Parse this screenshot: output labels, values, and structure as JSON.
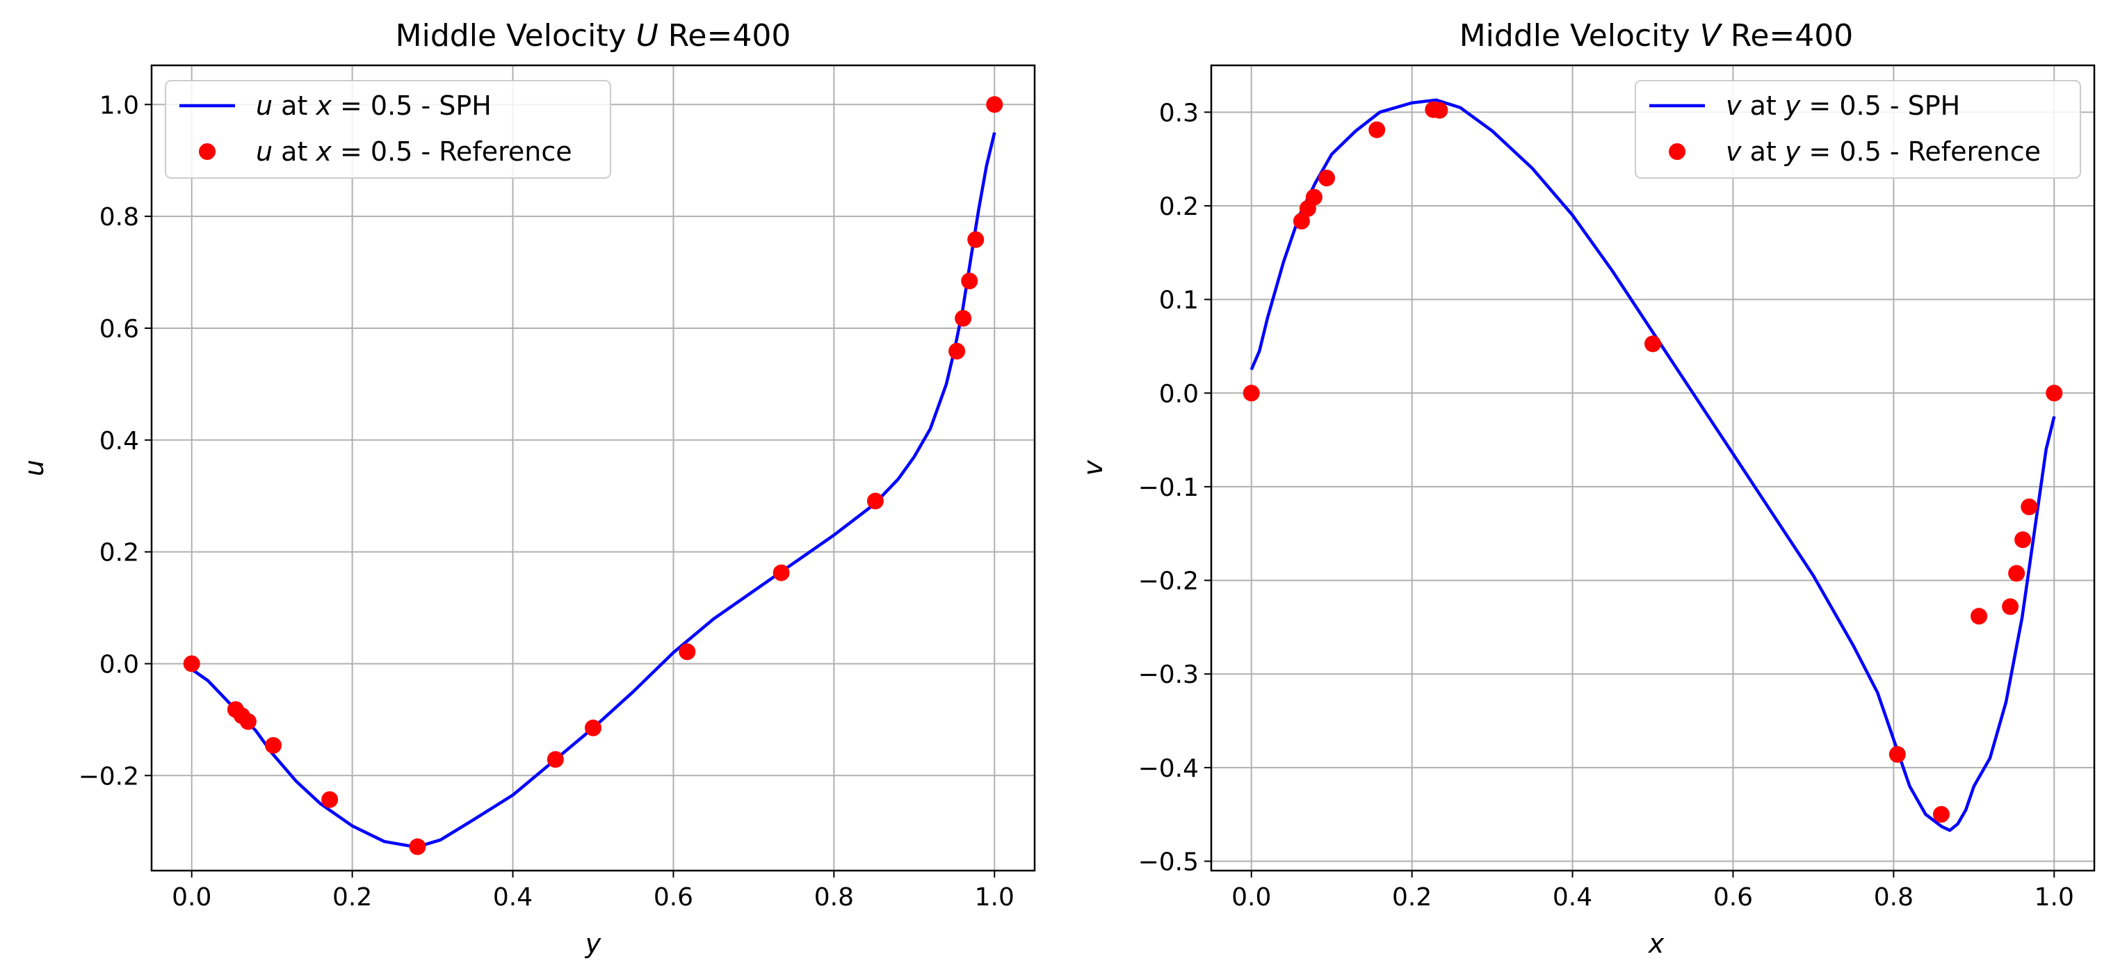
{
  "chart_data": [
    {
      "type": "line",
      "title": "Middle Velocity U Re=400",
      "title_parts": {
        "prefix": "Middle Velocity ",
        "var": "U",
        "suffix": " Re=400"
      },
      "xlabel": "y",
      "ylabel": "u",
      "xlim": [
        -0.05,
        1.05
      ],
      "ylim": [
        -0.37,
        1.07
      ],
      "xticks": [
        0.0,
        0.2,
        0.4,
        0.6,
        0.8,
        1.0
      ],
      "xtick_labels": [
        "0.0",
        "0.2",
        "0.4",
        "0.6",
        "0.8",
        "1.0"
      ],
      "yticks": [
        -0.2,
        0.0,
        0.2,
        0.4,
        0.6,
        0.8,
        1.0
      ],
      "ytick_labels": [
        "−0.2",
        "0.0",
        "0.2",
        "0.4",
        "0.6",
        "0.8",
        "1.0"
      ],
      "grid": true,
      "legend_position": "upper left",
      "series": [
        {
          "name": "u at x = 0.5 - SPH",
          "legend_parts": {
            "var": "u",
            "mid": " at ",
            "var2": "x",
            "rest": " = 0.5 - SPH"
          },
          "kind": "line",
          "color": "#0000ff",
          "x": [
            0.0,
            0.02,
            0.05,
            0.08,
            0.1,
            0.13,
            0.16,
            0.2,
            0.24,
            0.28,
            0.31,
            0.35,
            0.4,
            0.45,
            0.5,
            0.55,
            0.6,
            0.65,
            0.7,
            0.75,
            0.8,
            0.85,
            0.88,
            0.9,
            0.92,
            0.94,
            0.95,
            0.96,
            0.97,
            0.98,
            0.99,
            1.0
          ],
          "y": [
            -0.01,
            -0.03,
            -0.075,
            -0.12,
            -0.16,
            -0.21,
            -0.25,
            -0.29,
            -0.318,
            -0.328,
            -0.315,
            -0.28,
            -0.235,
            -0.175,
            -0.115,
            -0.05,
            0.02,
            0.08,
            0.13,
            0.18,
            0.23,
            0.285,
            0.33,
            0.37,
            0.42,
            0.5,
            0.56,
            0.63,
            0.72,
            0.81,
            0.89,
            0.95
          ]
        },
        {
          "name": "u at x = 0.5 - Reference",
          "legend_parts": {
            "var": "u",
            "mid": " at ",
            "var2": "x",
            "rest": " = 0.5 - Reference"
          },
          "kind": "scatter",
          "color": "#ff0000",
          "x": [
            0.0,
            0.0547,
            0.0625,
            0.0703,
            0.1016,
            0.1719,
            0.2813,
            0.4531,
            0.5,
            0.6172,
            0.7344,
            0.8516,
            0.9531,
            0.9609,
            0.9688,
            0.9766,
            1.0
          ],
          "y": [
            0.0,
            -0.0819,
            -0.0931,
            -0.1034,
            -0.1461,
            -0.243,
            -0.3273,
            -0.1712,
            -0.1148,
            0.0214,
            0.1626,
            0.2909,
            0.5589,
            0.6176,
            0.6844,
            0.7584,
            1.0
          ]
        }
      ]
    },
    {
      "type": "line",
      "title": "Middle Velocity V Re=400",
      "title_parts": {
        "prefix": "Middle Velocity ",
        "var": "V",
        "suffix": " Re=400"
      },
      "xlabel": "x",
      "ylabel": "v",
      "xlim": [
        -0.05,
        1.05
      ],
      "ylim": [
        -0.51,
        0.35
      ],
      "xticks": [
        0.0,
        0.2,
        0.4,
        0.6,
        0.8,
        1.0
      ],
      "xtick_labels": [
        "0.0",
        "0.2",
        "0.4",
        "0.6",
        "0.8",
        "1.0"
      ],
      "yticks": [
        -0.5,
        -0.4,
        -0.3,
        -0.2,
        -0.1,
        0.0,
        0.1,
        0.2,
        0.3
      ],
      "ytick_labels": [
        "−0.5",
        "−0.4",
        "−0.3",
        "−0.2",
        "−0.1",
        "0.0",
        "0.1",
        "0.2",
        "0.3"
      ],
      "grid": true,
      "legend_position": "upper right",
      "series": [
        {
          "name": "v at y = 0.5 - SPH",
          "legend_parts": {
            "var": "v",
            "mid": " at ",
            "var2": "y",
            "rest": " = 0.5 - SPH"
          },
          "kind": "line",
          "color": "#0000ff",
          "x": [
            0.0,
            0.01,
            0.02,
            0.04,
            0.06,
            0.08,
            0.1,
            0.13,
            0.16,
            0.2,
            0.23,
            0.26,
            0.3,
            0.35,
            0.4,
            0.45,
            0.5,
            0.55,
            0.6,
            0.65,
            0.7,
            0.75,
            0.78,
            0.8,
            0.82,
            0.84,
            0.86,
            0.87,
            0.88,
            0.89,
            0.9,
            0.92,
            0.94,
            0.96,
            0.98,
            0.99,
            1.0
          ],
          "y": [
            0.025,
            0.045,
            0.08,
            0.14,
            0.19,
            0.225,
            0.255,
            0.28,
            0.3,
            0.31,
            0.313,
            0.305,
            0.28,
            0.24,
            0.19,
            0.13,
            0.065,
            0.0,
            -0.065,
            -0.13,
            -0.195,
            -0.27,
            -0.32,
            -0.37,
            -0.42,
            -0.45,
            -0.463,
            -0.467,
            -0.46,
            -0.445,
            -0.42,
            -0.39,
            -0.33,
            -0.24,
            -0.12,
            -0.06,
            -0.025
          ]
        },
        {
          "name": "v at y = 0.5 - Reference",
          "legend_parts": {
            "var": "v",
            "mid": " at ",
            "var2": "y",
            "rest": " = 0.5 - Reference"
          },
          "kind": "scatter",
          "color": "#ff0000",
          "x": [
            0.0,
            0.0625,
            0.0703,
            0.0781,
            0.0938,
            0.1563,
            0.2266,
            0.2344,
            0.5,
            0.8047,
            0.8594,
            0.9063,
            0.9453,
            0.9531,
            0.9609,
            0.9688,
            1.0
          ],
          "y": [
            0.0,
            0.1836,
            0.1971,
            0.2092,
            0.2297,
            0.2812,
            0.3027,
            0.302,
            0.0526,
            -0.3859,
            -0.4499,
            -0.2383,
            -0.2281,
            -0.1925,
            -0.1566,
            -0.1215,
            0.0
          ]
        }
      ]
    }
  ]
}
